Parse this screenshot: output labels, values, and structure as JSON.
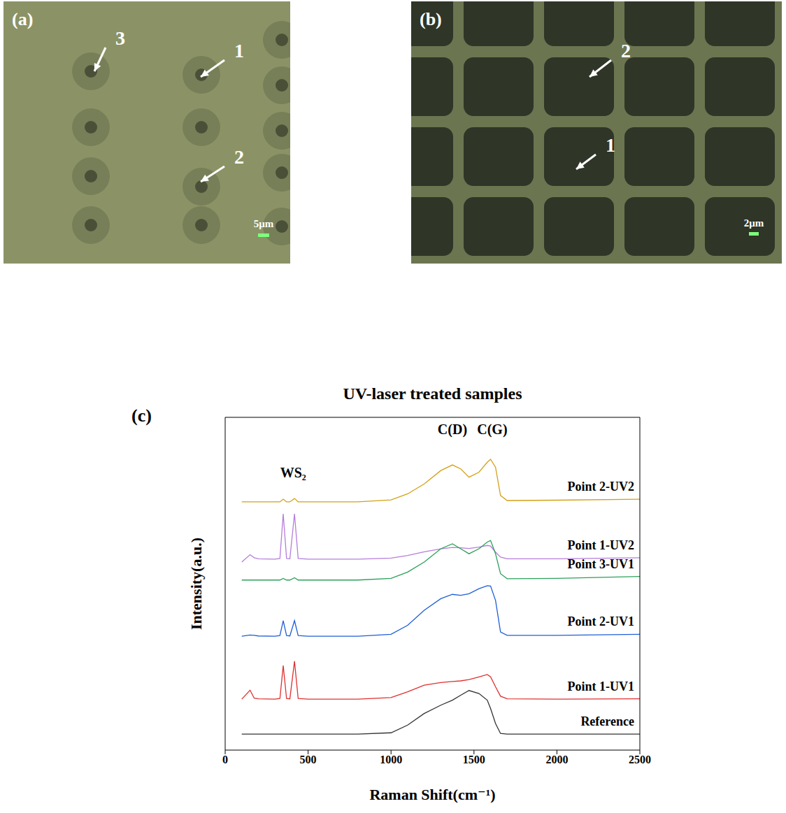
{
  "panels": {
    "a": {
      "label": "(a)",
      "markers": [
        "3",
        "1",
        "2"
      ],
      "scale_bar": "5μm"
    },
    "b": {
      "label": "(b)",
      "markers": [
        "2",
        "1"
      ],
      "scale_bar": "2μm"
    }
  },
  "chart_data": {
    "panel_label": "(c)",
    "type": "line",
    "title": "UV-laser treated samples",
    "x_label": "Raman Shift(cm⁻¹)",
    "y_label": "Intensity(a.u.)",
    "xlim": [
      0,
      2500
    ],
    "xticks": [
      0,
      500,
      1000,
      1500,
      2000,
      2500
    ],
    "ylim": [
      0,
      100
    ],
    "tick_labels": "x",
    "grid": false,
    "x": [
      100,
      150,
      175,
      200,
      300,
      330,
      350,
      370,
      390,
      418,
      440,
      500,
      800,
      1000,
      1100,
      1200,
      1300,
      1370,
      1420,
      1470,
      1530,
      1580,
      1600,
      1630,
      1660,
      1700,
      2000,
      2500
    ],
    "series": [
      {
        "name": "Point 2-UV2",
        "color": "#d4a017",
        "values": [
          74.6,
          74.6,
          74.6,
          74.6,
          74.6,
          74.6,
          75.4,
          74.6,
          74.6,
          75.6,
          74.6,
          74.6,
          74.6,
          75.2,
          77,
          80,
          84,
          85.7,
          84.5,
          82,
          83.5,
          86.5,
          87.4,
          85,
          76.5,
          75,
          75.1,
          75.4
        ]
      },
      {
        "name": "Point 1-UV2",
        "color": "#b57edc",
        "values": [
          56.5,
          58.7,
          57.8,
          57.5,
          57.4,
          57.6,
          71,
          57.6,
          57.5,
          71,
          57.6,
          57.4,
          57.4,
          57.7,
          58.5,
          59.6,
          60.5,
          60.9,
          60.8,
          60.6,
          61,
          61.5,
          61.3,
          59.5,
          58,
          57.5,
          57.5,
          57.8
        ]
      },
      {
        "name": "Point 3-UV1",
        "color": "#2ca05a",
        "values": [
          51.1,
          51.1,
          51.1,
          51.1,
          51.1,
          51.1,
          51.6,
          51.1,
          51.1,
          51.8,
          51.1,
          51.1,
          51.1,
          51.6,
          53.5,
          56.5,
          60.5,
          62,
          60.5,
          59,
          60.5,
          62.5,
          63,
          59,
          53,
          51.5,
          51.6,
          52.2
        ]
      },
      {
        "name": "Point 2-UV1",
        "color": "#1f5fd6",
        "values": [
          34.2,
          34.6,
          34.5,
          34.3,
          34.2,
          34.4,
          38.9,
          34.4,
          34.3,
          38.9,
          34.4,
          34.2,
          34.2,
          34.8,
          37.5,
          42,
          45.5,
          46.8,
          46.5,
          47,
          48.5,
          49.4,
          49.3,
          45,
          35.5,
          34.5,
          34.5,
          34.8
        ]
      },
      {
        "name": "Point 1-UV1",
        "color": "#e03030",
        "values": [
          15.3,
          18,
          15.6,
          15.4,
          15.3,
          15.5,
          25.4,
          15.5,
          15.4,
          26.7,
          15.5,
          15.3,
          15.3,
          15.8,
          17.5,
          19.5,
          20.3,
          20.6,
          20.8,
          21.2,
          22,
          22.7,
          22,
          19,
          16.2,
          15.4,
          15.3,
          15.4
        ]
      },
      {
        "name": "Reference",
        "color": "#333333",
        "values": [
          4.8,
          4.8,
          4.8,
          4.8,
          4.8,
          4.8,
          4.8,
          4.8,
          4.8,
          4.8,
          4.8,
          4.8,
          4.8,
          5.2,
          7.5,
          11,
          13.5,
          15,
          16.5,
          17.9,
          17,
          15,
          12.5,
          8,
          5,
          4.8,
          4.8,
          4.8
        ]
      }
    ],
    "annotations": [
      {
        "text": "WS₂",
        "x": 410,
        "y": 83
      },
      {
        "text": "C(D)",
        "x": 1370,
        "y": 96
      },
      {
        "text": "C(G)",
        "x": 1610,
        "y": 96
      }
    ]
  }
}
